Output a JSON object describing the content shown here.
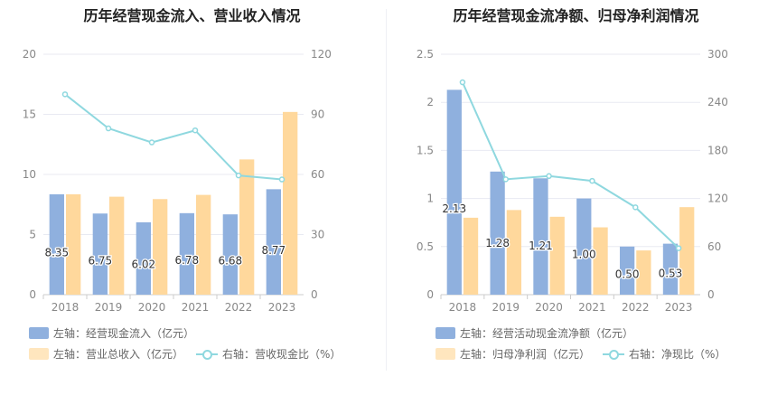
{
  "colors": {
    "primary_bar": "#8fb0de",
    "secondary_bar": "#ffd89c",
    "line": "#8fd8df",
    "grid": "#e8eaf2",
    "axis_text": "#888888"
  },
  "chart_data": [
    {
      "type": "bar",
      "title": "历年经营现金流入、营业收入情况",
      "categories": [
        "2018",
        "2019",
        "2020",
        "2021",
        "2022",
        "2023"
      ],
      "left_axis": {
        "ylim": [
          0,
          20
        ],
        "ticks": [
          "0",
          "5",
          "10",
          "15",
          "20"
        ]
      },
      "right_axis": {
        "ylim": [
          0,
          120
        ],
        "ticks": [
          "0",
          "30",
          "60",
          "90",
          "120"
        ]
      },
      "series": [
        {
          "name": "左轴：经营现金流入（亿元）",
          "kind": "bar",
          "axis": "left",
          "values": [
            8.35,
            6.75,
            6.02,
            6.78,
            6.68,
            8.77
          ],
          "labels": [
            "8.35",
            "6.75",
            "6.02",
            "6.78",
            "6.68",
            "8.77"
          ]
        },
        {
          "name": "左轴：营业总收入（亿元）",
          "kind": "bar",
          "axis": "left",
          "values": [
            8.35,
            8.15,
            7.95,
            8.3,
            11.25,
            15.2
          ]
        },
        {
          "name": "右轴：营收现金比（%）",
          "kind": "line",
          "axis": "right",
          "values": [
            100,
            83,
            76,
            82,
            59.5,
            57.5
          ]
        }
      ]
    },
    {
      "type": "bar",
      "title": "历年经营现金流净额、归母净利润情况",
      "categories": [
        "2018",
        "2019",
        "2020",
        "2021",
        "2022",
        "2023"
      ],
      "left_axis": {
        "ylim": [
          0,
          2.5
        ],
        "ticks": [
          "0",
          "0.5",
          "1",
          "1.5",
          "2",
          "2.5"
        ]
      },
      "right_axis": {
        "ylim": [
          0,
          300
        ],
        "ticks": [
          "0",
          "60",
          "120",
          "180",
          "240",
          "300"
        ]
      },
      "series": [
        {
          "name": "左轴：经营活动现金流净额（亿元）",
          "kind": "bar",
          "axis": "left",
          "values": [
            2.13,
            1.28,
            1.21,
            1.0,
            0.5,
            0.53
          ],
          "labels": [
            "2.13",
            "1.28",
            "1.21",
            "1.00",
            "0.50",
            "0.53"
          ]
        },
        {
          "name": "左轴：归母净利润（亿元）",
          "kind": "bar",
          "axis": "left",
          "values": [
            0.8,
            0.88,
            0.81,
            0.7,
            0.46,
            0.91
          ]
        },
        {
          "name": "右轴：净现比（%）",
          "kind": "line",
          "axis": "right",
          "values": [
            265,
            144,
            148,
            142,
            109,
            58
          ]
        }
      ]
    }
  ]
}
